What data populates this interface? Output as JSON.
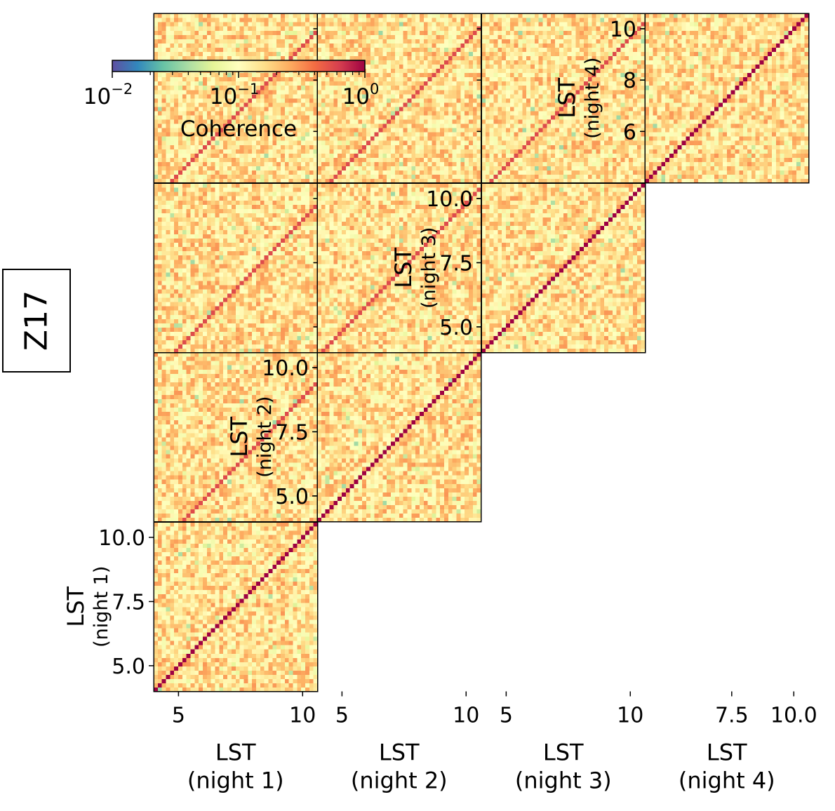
{
  "panel_label": "Z17",
  "chart_data": {
    "type": "heatmap",
    "description_of_layout": "lower-triangular grid of coherence matrices between nights",
    "nights": [
      "night 1",
      "night 2",
      "night 3",
      "night 4"
    ],
    "lst_range": [
      4.0,
      10.6
    ],
    "grid_size": 40,
    "colormap": "Spectral_r",
    "color_scale": "log",
    "colorbar": {
      "label": "Coherence",
      "range": [
        0.01,
        1.0
      ],
      "ticks": [
        {
          "base": "10",
          "exp": "−2",
          "value": 0.01
        },
        {
          "base": "10",
          "exp": "−1",
          "value": 0.1
        },
        {
          "base": "10",
          "exp": "0",
          "value": 1.0
        }
      ]
    },
    "typical_offdiagonal_coherence": [
      0.08,
      0.3
    ],
    "diagonal_coherence": 1.0,
    "cross_night_diagonal_coherence": 0.55,
    "row_axes": [
      {
        "night": "night 1",
        "label": "LST",
        "sublabel": "(night 1)",
        "ticks": [
          "5.0",
          "7.5",
          "10.0"
        ],
        "tick_values": [
          5.0,
          7.5,
          10.0
        ]
      },
      {
        "night": "night 2",
        "label": "LST",
        "sublabel": "(night 2)",
        "ticks": [
          "5.0",
          "7.5",
          "10.0"
        ],
        "tick_values": [
          5.0,
          7.5,
          10.0
        ]
      },
      {
        "night": "night 3",
        "label": "LST",
        "sublabel": "(night 3)",
        "ticks": [
          "5.0",
          "7.5",
          "10.0"
        ],
        "tick_values": [
          5.0,
          7.5,
          10.0
        ]
      },
      {
        "night": "night 4",
        "label": "LST",
        "sublabel": "(night 4)",
        "ticks": [
          "6",
          "8",
          "10"
        ],
        "tick_values": [
          6,
          8,
          10
        ]
      }
    ],
    "col_axes": [
      {
        "night": "night 1",
        "label": "LST",
        "sublabel": "(night 1)",
        "ticks": [
          "5",
          "10"
        ],
        "tick_values": [
          5,
          10
        ]
      },
      {
        "night": "night 2",
        "label": "LST",
        "sublabel": "(night 2)",
        "ticks": [
          "5",
          "10"
        ],
        "tick_values": [
          5,
          10
        ]
      },
      {
        "night": "night 3",
        "label": "LST",
        "sublabel": "(night 3)",
        "ticks": [
          "5",
          "10"
        ],
        "tick_values": [
          5,
          10
        ]
      },
      {
        "night": "night 4",
        "label": "LST",
        "sublabel": "(night 4)",
        "ticks": [
          "7.5",
          "10.0"
        ],
        "tick_values": [
          7.5,
          10.0
        ]
      }
    ],
    "diagonal_offsets_steps": [
      [
        0,
        null,
        null,
        null
      ],
      [
        7,
        0,
        null,
        null
      ],
      [
        5,
        1,
        0,
        null
      ],
      [
        4,
        3,
        2,
        0
      ]
    ]
  }
}
